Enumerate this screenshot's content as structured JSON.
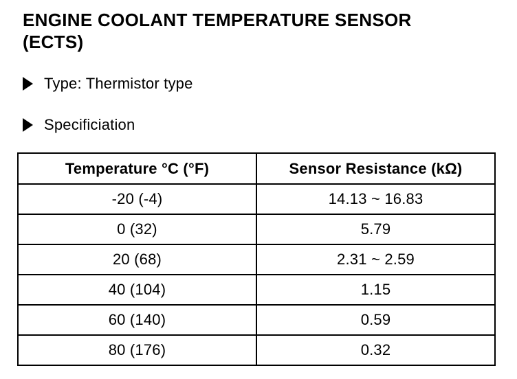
{
  "page": {
    "title_line1": "ENGINE COOLANT TEMPERATURE SENSOR",
    "title_line2": "(ECTS)",
    "bullets": [
      {
        "label": "Type: Thermistor type"
      },
      {
        "label": "Specificiation"
      }
    ],
    "icons": {
      "bullet": "right-filled-triangle"
    }
  },
  "table": {
    "headers": [
      "Temperature °C (°F)",
      "Sensor Resistance (kΩ)"
    ],
    "rows": [
      [
        "-20 (-4)",
        "14.13 ~ 16.83"
      ],
      [
        "0 (32)",
        "5.79"
      ],
      [
        "20 (68)",
        "2.31 ~ 2.59"
      ],
      [
        "40 (104)",
        "1.15"
      ],
      [
        "60 (140)",
        "0.59"
      ],
      [
        "80 (176)",
        "0.32"
      ]
    ]
  }
}
